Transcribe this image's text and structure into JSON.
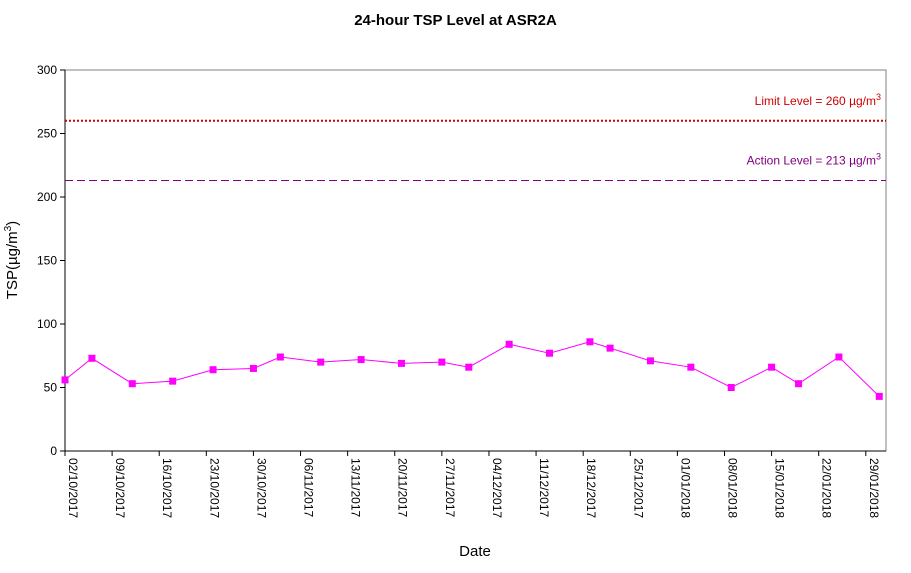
{
  "chart_data": {
    "type": "line",
    "title": "24-hour TSP Level at ASR2A",
    "xlabel": "Date",
    "ylabel": "TSP(µg/m3)",
    "ylabel_base": "TSP(µg/m",
    "ylabel_sup": "3",
    "ylabel_end": ")",
    "ylim": [
      0,
      300
    ],
    "yticks": [
      0,
      50,
      100,
      150,
      200,
      250,
      300
    ],
    "xlim": [
      "2017-10-02",
      "2018-02-01"
    ],
    "xtick_labels": [
      "02/10/2017",
      "09/10/2017",
      "16/10/2017",
      "23/10/2017",
      "30/10/2017",
      "06/11/2017",
      "13/11/2017",
      "20/11/2017",
      "27/11/2017",
      "04/12/2017",
      "11/12/2017",
      "18/12/2017",
      "25/12/2017",
      "01/01/2018",
      "08/01/2018",
      "15/01/2018",
      "22/01/2018",
      "29/01/2018"
    ],
    "grid": false,
    "series": [
      {
        "color": "#ff00ff",
        "marker": "square",
        "x": [
          "2017-10-02",
          "2017-10-06",
          "2017-10-12",
          "2017-10-18",
          "2017-10-24",
          "2017-10-30",
          "2017-11-03",
          "2017-11-09",
          "2017-11-15",
          "2017-11-21",
          "2017-11-27",
          "2017-12-01",
          "2017-12-07",
          "2017-12-13",
          "2017-12-19",
          "2017-12-22",
          "2017-12-28",
          "2018-01-03",
          "2018-01-09",
          "2018-01-15",
          "2018-01-19",
          "2018-01-25",
          "2018-01-31"
        ],
        "y": [
          56,
          73,
          53,
          55,
          64,
          65,
          74,
          70,
          72,
          69,
          70,
          66,
          84,
          77,
          86,
          81,
          71,
          66,
          50,
          66,
          53,
          74,
          43
        ]
      }
    ],
    "reference_lines": [
      {
        "label_base": "Limit Level = 260 ",
        "label_unit": "µg/m",
        "label_sup": "3",
        "value": 260,
        "color": "#cc0000",
        "style": "dotted"
      },
      {
        "label_base": "Action Level = 213 ",
        "label_unit": "µg/m",
        "label_sup": "3",
        "value": 213,
        "color": "#800080",
        "style": "dashed"
      }
    ]
  }
}
